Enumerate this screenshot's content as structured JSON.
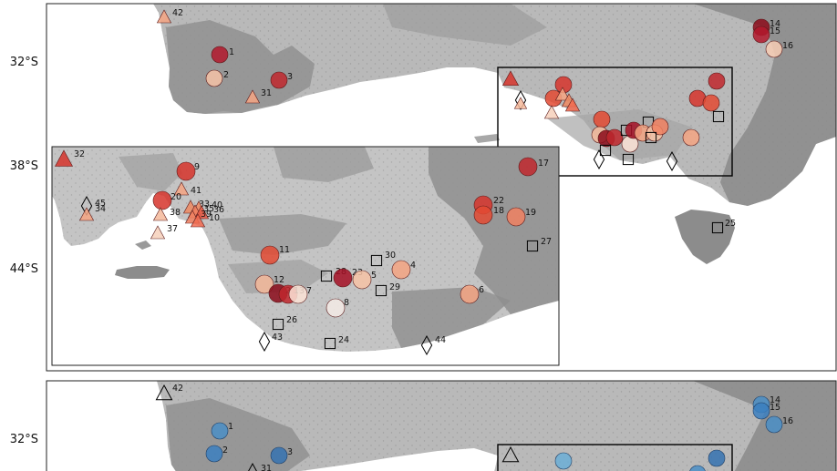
{
  "panels": [
    {
      "id": "top",
      "color_scheme": "reds",
      "lat_labels": [
        "32°S",
        "38°S",
        "44°S"
      ],
      "main_sites": [
        {
          "id": "42",
          "shape": "triangle",
          "color": "#f4a582"
        },
        {
          "id": "1",
          "shape": "circle",
          "color": "#b2182b"
        },
        {
          "id": "2",
          "shape": "circle",
          "color": "#f4c2a6"
        },
        {
          "id": "3",
          "shape": "circle",
          "color": "#c0272d"
        },
        {
          "id": "31",
          "shape": "triangle",
          "color": "#f4a582"
        },
        {
          "id": "14",
          "shape": "circle",
          "color": "#8b0a1a"
        },
        {
          "id": "15",
          "shape": "circle",
          "color": "#b2182b"
        },
        {
          "id": "16",
          "shape": "circle",
          "color": "#f7cdb4"
        },
        {
          "id": "25",
          "shape": "square",
          "color": "none"
        }
      ],
      "inset_sites": [
        {
          "id": "32",
          "shape": "triangle",
          "color": "#d6342c"
        },
        {
          "id": "9",
          "shape": "circle",
          "color": "#d6342c"
        },
        {
          "id": "17",
          "shape": "circle",
          "color": "#c0272d"
        },
        {
          "id": "41",
          "shape": "triangle",
          "color": "#f4a582"
        },
        {
          "id": "20",
          "shape": "circle",
          "color": "#d6342c"
        },
        {
          "id": "33",
          "shape": "triangle",
          "color": "#ef8a62"
        },
        {
          "id": "40",
          "shape": "triangle",
          "color": "#ef8a62"
        },
        {
          "id": "35",
          "shape": "triangle",
          "color": "#f08060"
        },
        {
          "id": "36",
          "shape": "triangle",
          "color": "#e85b48"
        },
        {
          "id": "39",
          "shape": "triangle",
          "color": "#f08060"
        },
        {
          "id": "10",
          "shape": "triangle",
          "color": "#f26b50"
        },
        {
          "id": "38",
          "shape": "triangle",
          "color": "#f4b89a"
        },
        {
          "id": "37",
          "shape": "triangle",
          "color": "#f6d0bb"
        },
        {
          "id": "45",
          "shape": "diamond",
          "color": "none"
        },
        {
          "id": "34",
          "shape": "triangle",
          "color": "#f4a582"
        },
        {
          "id": "22",
          "shape": "circle",
          "color": "#d6342c"
        },
        {
          "id": "18",
          "shape": "circle",
          "color": "#e34a33"
        },
        {
          "id": "19",
          "shape": "circle",
          "color": "#f08060"
        },
        {
          "id": "27",
          "shape": "square",
          "color": "none"
        },
        {
          "id": "11",
          "shape": "circle",
          "color": "#e34a33"
        },
        {
          "id": "30",
          "shape": "square",
          "color": "none"
        },
        {
          "id": "4",
          "shape": "circle",
          "color": "#f4a582"
        },
        {
          "id": "28",
          "shape": "square",
          "color": "none"
        },
        {
          "id": "23",
          "shape": "circle",
          "color": "#a50f25"
        },
        {
          "id": "5",
          "shape": "circle",
          "color": "#f7c3a6"
        },
        {
          "id": "12",
          "shape": "circle",
          "color": "#f4b89a"
        },
        {
          "id": "21",
          "shape": "circle",
          "color": "#8b0a1a"
        },
        {
          "id": "13",
          "shape": "circle",
          "color": "#c0272d"
        },
        {
          "id": "7",
          "shape": "circle",
          "color": "#fbe3d6"
        },
        {
          "id": "29",
          "shape": "square",
          "color": "none"
        },
        {
          "id": "6",
          "shape": "circle",
          "color": "#f4a582"
        },
        {
          "id": "8",
          "shape": "circle",
          "color": "#f5ebe6"
        },
        {
          "id": "26",
          "shape": "square",
          "color": "none"
        },
        {
          "id": "43",
          "shape": "diamond",
          "color": "none"
        },
        {
          "id": "24",
          "shape": "square",
          "color": "none"
        },
        {
          "id": "44",
          "shape": "diamond",
          "color": "none"
        }
      ]
    },
    {
      "id": "bottom",
      "color_scheme": "blues",
      "lat_labels": [
        "32°S"
      ],
      "main_sites": [
        {
          "id": "42",
          "shape": "triangle",
          "color": "none"
        },
        {
          "id": "1",
          "shape": "circle",
          "color": "#4a8ec6"
        },
        {
          "id": "2",
          "shape": "circle",
          "color": "#3b7fbf"
        },
        {
          "id": "3",
          "shape": "circle",
          "color": "#3572b0"
        },
        {
          "id": "31",
          "shape": "triangle",
          "color": "none"
        },
        {
          "id": "14",
          "shape": "circle",
          "color": "#4a8ec6"
        },
        {
          "id": "15",
          "shape": "circle",
          "color": "#3b7fbf"
        },
        {
          "id": "16",
          "shape": "circle",
          "color": "#4a8ec6"
        }
      ]
    }
  ]
}
